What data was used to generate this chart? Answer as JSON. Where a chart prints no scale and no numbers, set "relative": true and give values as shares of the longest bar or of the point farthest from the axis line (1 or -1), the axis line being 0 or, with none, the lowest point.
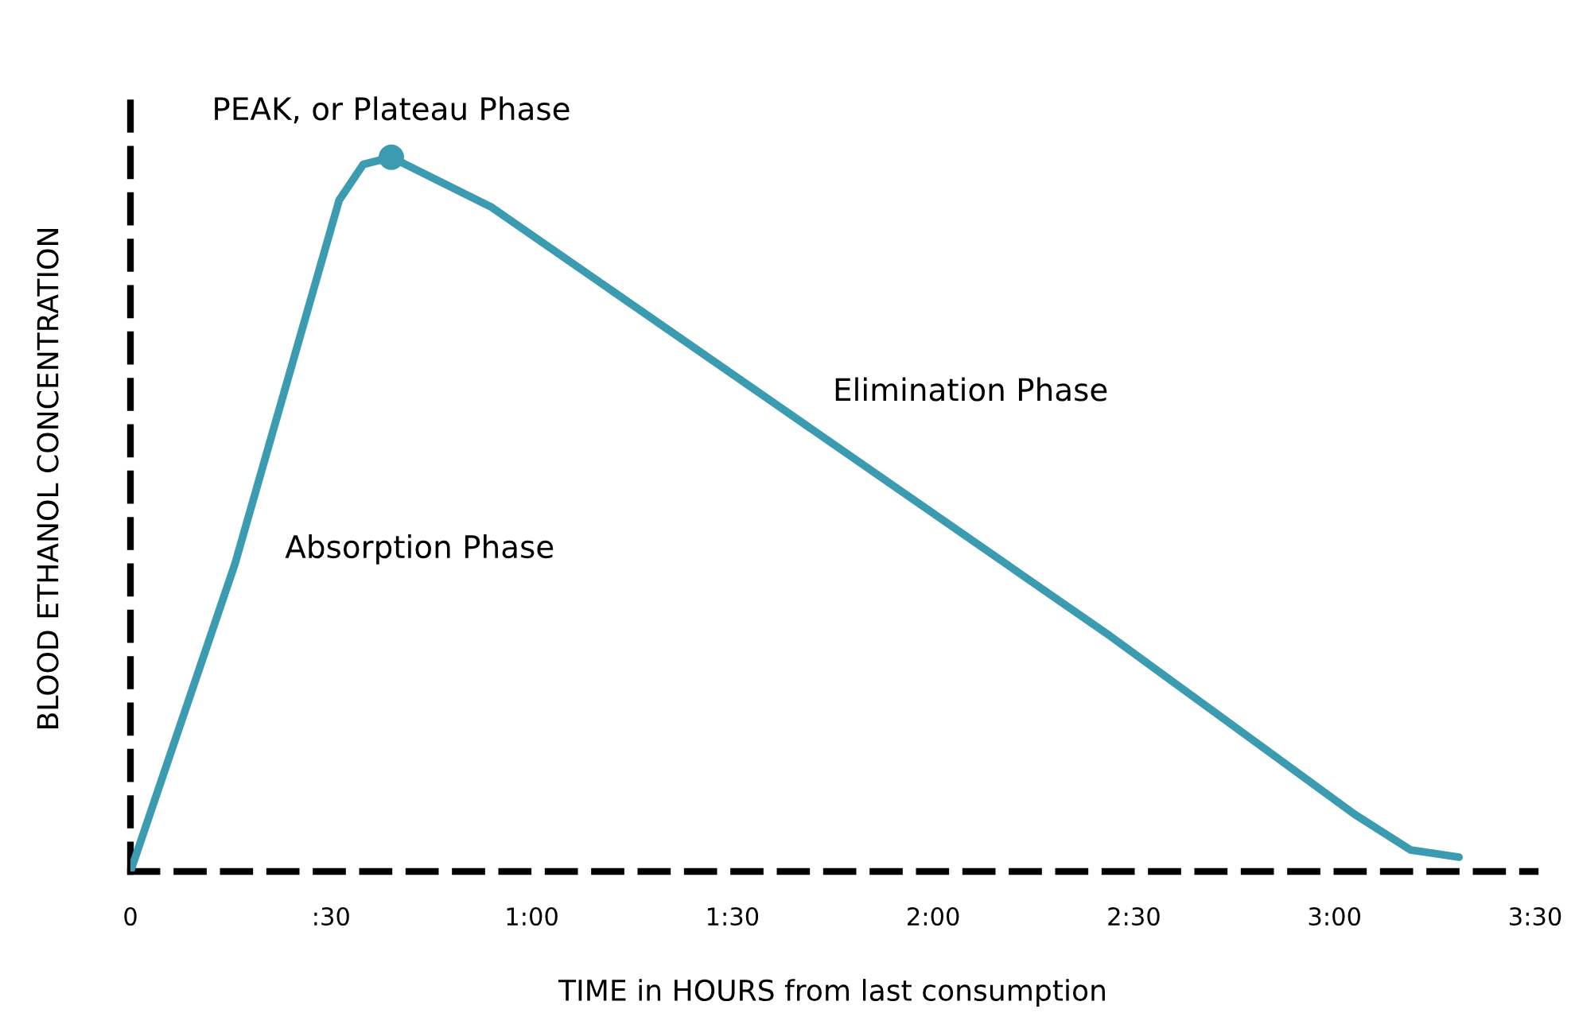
{
  "chart_data": {
    "type": "line",
    "relative": true,
    "xlabel": "TIME in HOURS from last consumption",
    "ylabel": "BLOOD ETHANOL CONCENTRATION",
    "xlim": [
      0,
      210
    ],
    "xticks": [
      0,
      {
        "value": 30,
        "label": ":30"
      },
      {
        "value": 60,
        "label": "1:00"
      },
      {
        "value": 90,
        "label": "1:30"
      },
      {
        "value": 120,
        "label": "2:00"
      },
      {
        "value": 150,
        "label": "2:30"
      },
      {
        "value": 180,
        "label": "3:00"
      },
      {
        "value": 210,
        "label": "3:30"
      }
    ],
    "grid": false,
    "legend": false,
    "marker": "none",
    "line_style": "solid",
    "series": [
      {
        "color": "#3b9bb0",
        "x": [
          0,
          15.6,
          31.2,
          34.8,
          39,
          54,
          146.4,
          183,
          191.4,
          198.6
        ],
        "values": [
          0,
          0.43,
          0.94,
          0.99,
          1,
          0.93,
          0.33,
          0.08,
          0.03,
          0.02
        ]
      },
      {
        "type": "scatter",
        "color": "#3b9bb0",
        "marker": "circle",
        "x": [
          39
        ],
        "values": [
          1
        ]
      }
    ],
    "annotations": [
      {
        "text": "PEAK, or Plateau Phase",
        "x": 39,
        "y": 1
      },
      "Absorption Phase",
      "Elimination Phase"
    ]
  }
}
